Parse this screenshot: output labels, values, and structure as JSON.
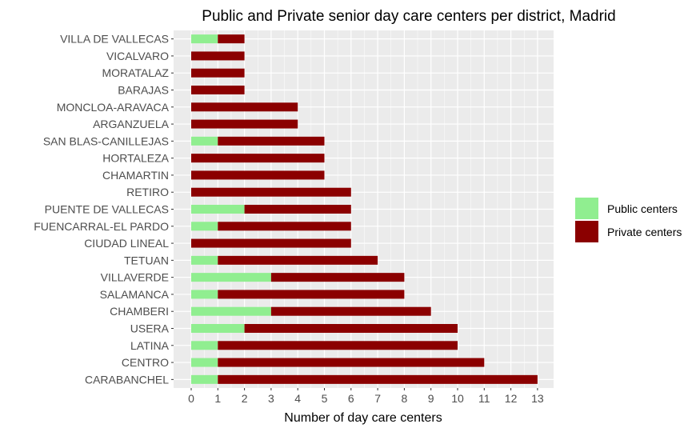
{
  "chart_data": {
    "type": "bar",
    "orientation": "horizontal",
    "stacked": true,
    "title": "Public and Private senior day care centers per district, Madrid",
    "xlabel": "Number of day care centers",
    "ylabel": "",
    "xlim": [
      0,
      13
    ],
    "x_ticks": [
      "0",
      "1",
      "2",
      "3",
      "4",
      "5",
      "6",
      "7",
      "8",
      "9",
      "10",
      "11",
      "12",
      "13"
    ],
    "grid": true,
    "legend": "right",
    "categories": [
      "VILLA DE VALLECAS",
      "VICALVARO",
      "MORATALAZ",
      "BARAJAS",
      "MONCLOA-ARAVACA",
      "ARGANZUELA",
      "SAN BLAS-CANILLEJAS",
      "HORTALEZA",
      "CHAMARTIN",
      "RETIRO",
      "PUENTE DE VALLECAS",
      "FUENCARRAL-EL PARDO",
      "CIUDAD LINEAL",
      "TETUAN",
      "VILLAVERDE",
      "SALAMANCA",
      "CHAMBERI",
      "USERA",
      "LATINA",
      "CENTRO",
      "CARABANCHEL"
    ],
    "series": [
      {
        "name": "Public centers",
        "color": "#90EE90",
        "values": [
          1,
          0,
          0,
          0,
          0,
          0,
          1,
          0,
          0,
          0,
          2,
          1,
          0,
          1,
          3,
          1,
          3,
          2,
          1,
          1,
          1
        ]
      },
      {
        "name": "Private centers",
        "color": "#8B0000",
        "values": [
          1,
          2,
          2,
          2,
          4,
          4,
          4,
          5,
          5,
          6,
          4,
          5,
          6,
          6,
          5,
          7,
          6,
          8,
          9,
          10,
          12
        ]
      }
    ],
    "panel_background": "#EBEBEB",
    "grid_color": "#FFFFFF"
  }
}
